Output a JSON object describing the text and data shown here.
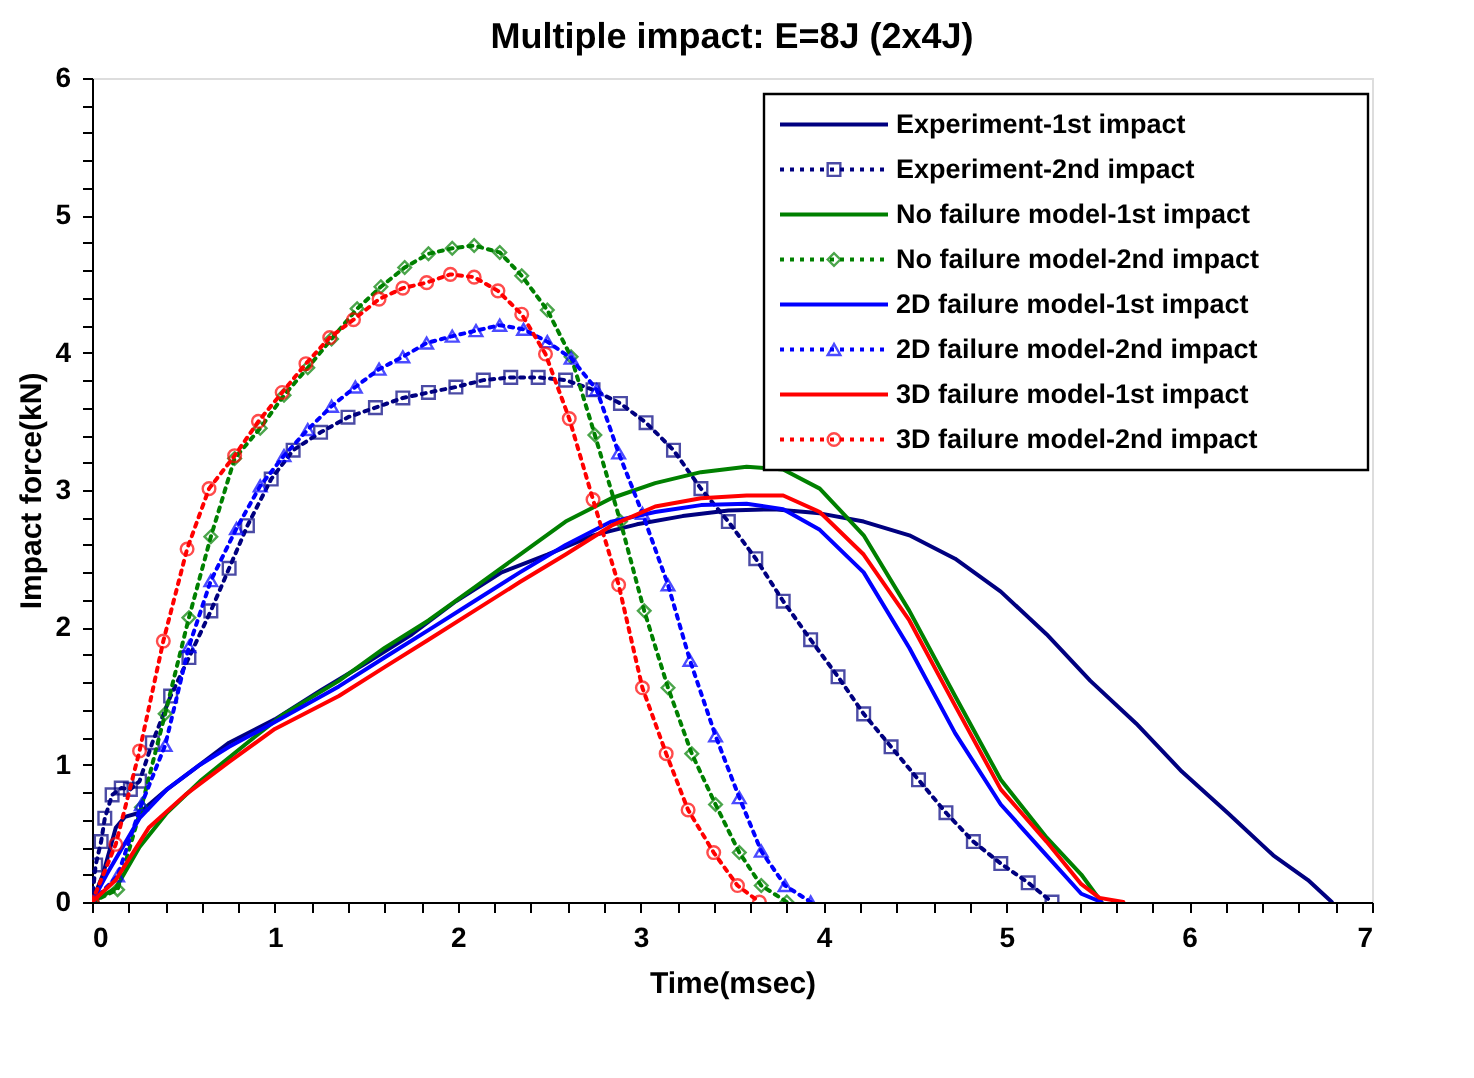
{
  "chart_data": {
    "type": "line",
    "title": "Multiple impact: E=8J (2x4J)",
    "xlabel": "Time(msec)",
    "ylabel": "Impact force(kN)",
    "xlim": [
      0,
      7
    ],
    "ylim": [
      0,
      6
    ],
    "xticks": [
      0,
      {
        "value": 0.2,
        "label": null
      },
      {
        "value": 0.4,
        "label": null
      },
      {
        "value": 0.6,
        "label": null
      },
      {
        "value": 0.8,
        "label": null
      },
      1,
      {
        "value": 1.2,
        "label": null
      },
      {
        "value": 1.4,
        "label": null
      },
      {
        "value": 1.6,
        "label": null
      },
      {
        "value": 1.8,
        "label": null
      },
      2,
      {
        "value": 2.2,
        "label": null
      },
      {
        "value": 2.4,
        "label": null
      },
      {
        "value": 2.6,
        "label": null
      },
      {
        "value": 2.8,
        "label": null
      },
      3,
      {
        "value": 3.2,
        "label": null
      },
      {
        "value": 3.4,
        "label": null
      },
      {
        "value": 3.6,
        "label": null
      },
      {
        "value": 3.8,
        "label": null
      },
      4,
      {
        "value": 4.2,
        "label": null
      },
      {
        "value": 4.4,
        "label": null
      },
      {
        "value": 4.6,
        "label": null
      },
      {
        "value": 4.8,
        "label": null
      },
      5,
      {
        "value": 5.2,
        "label": null
      },
      {
        "value": 5.4,
        "label": null
      },
      {
        "value": 5.6,
        "label": null
      },
      {
        "value": 5.8,
        "label": null
      },
      6,
      {
        "value": 6.2,
        "label": null
      },
      {
        "value": 6.4,
        "label": null
      },
      {
        "value": 6.6,
        "label": null
      },
      {
        "value": 6.8,
        "label": null
      },
      7
    ],
    "yticks": [
      0,
      {
        "value": 0.2,
        "label": null
      },
      {
        "value": 0.4,
        "label": null
      },
      {
        "value": 0.6,
        "label": null
      },
      {
        "value": 0.8,
        "label": null
      },
      1,
      {
        "value": 1.2,
        "label": null
      },
      {
        "value": 1.4,
        "label": null
      },
      {
        "value": 1.6,
        "label": null
      },
      {
        "value": 1.8,
        "label": null
      },
      2,
      {
        "value": 2.2,
        "label": null
      },
      {
        "value": 2.4,
        "label": null
      },
      {
        "value": 2.6,
        "label": null
      },
      {
        "value": 2.8,
        "label": null
      },
      3,
      {
        "value": 3.2,
        "label": null
      },
      {
        "value": 3.4,
        "label": null
      },
      {
        "value": 3.6,
        "label": null
      },
      {
        "value": 3.8,
        "label": null
      },
      4,
      {
        "value": 4.2,
        "label": null
      },
      {
        "value": 4.4,
        "label": null
      },
      {
        "value": 4.6,
        "label": null
      },
      {
        "value": 4.8,
        "label": null
      },
      5,
      {
        "value": 5.2,
        "label": null
      },
      {
        "value": 5.4,
        "label": null
      },
      {
        "value": 5.6,
        "label": null
      },
      {
        "value": 5.8,
        "label": null
      },
      6
    ],
    "grid": false,
    "legend": "top right",
    "series": [
      {
        "name": "Experiment-1st impact",
        "color": "#000080",
        "line_style": "solid",
        "marker": "none",
        "x": [
          0,
          0.06,
          0.13,
          0.18,
          0.26,
          0.41,
          0.58,
          0.75,
          1.0,
          1.25,
          1.5,
          1.75,
          1.99,
          2.24,
          2.49,
          2.74,
          2.98,
          3.23,
          3.48,
          3.73,
          3.98,
          4.22,
          4.47,
          4.72,
          4.97,
          5.22,
          5.46,
          5.71,
          5.96,
          6.21,
          6.46,
          6.65,
          6.78
        ],
        "values": [
          0,
          0.2,
          0.54,
          0.62,
          0.65,
          0.82,
          0.99,
          1.16,
          1.33,
          1.54,
          1.74,
          1.95,
          2.19,
          2.4,
          2.53,
          2.67,
          2.75,
          2.81,
          2.85,
          2.86,
          2.83,
          2.77,
          2.67,
          2.5,
          2.26,
          1.95,
          1.61,
          1.3,
          0.95,
          0.65,
          0.34,
          0.16,
          0
        ]
      },
      {
        "name": "Experiment-2nd impact",
        "color": "#000080",
        "line_style": "dotted",
        "marker": "square",
        "x": [
          0,
          0.02,
          0.05,
          0.07,
          0.11,
          0.16,
          0.21,
          0.26,
          0.33,
          0.43,
          0.53,
          0.65,
          0.75,
          0.85,
          0.98,
          1.1,
          1.25,
          1.4,
          1.55,
          1.7,
          1.84,
          1.99,
          2.14,
          2.29,
          2.44,
          2.59,
          2.74,
          2.89,
          3.03,
          3.18,
          3.33,
          3.48,
          3.63,
          3.78,
          3.93,
          4.08,
          4.22,
          4.37,
          4.52,
          4.67,
          4.82,
          4.97,
          5.12,
          5.25
        ],
        "values": [
          0,
          0.27,
          0.44,
          0.61,
          0.78,
          0.83,
          0.82,
          0.88,
          1.16,
          1.5,
          1.78,
          2.12,
          2.43,
          2.74,
          3.08,
          3.29,
          3.42,
          3.53,
          3.6,
          3.67,
          3.71,
          3.75,
          3.8,
          3.82,
          3.82,
          3.8,
          3.73,
          3.63,
          3.49,
          3.29,
          3.01,
          2.77,
          2.5,
          2.19,
          1.91,
          1.64,
          1.37,
          1.13,
          0.89,
          0.65,
          0.44,
          0.28,
          0.14,
          0
        ]
      },
      {
        "name": "No failure model-1st impact",
        "color": "#008000",
        "line_style": "solid",
        "marker": "none",
        "x": [
          0,
          0.13,
          0.26,
          0.41,
          0.6,
          0.85,
          1.05,
          1.35,
          1.6,
          1.84,
          2.09,
          2.34,
          2.59,
          2.84,
          3.08,
          3.33,
          3.58,
          3.78,
          3.98,
          4.22,
          4.47,
          4.72,
          4.97,
          5.22,
          5.41,
          5.52
        ],
        "values": [
          0,
          0.1,
          0.4,
          0.65,
          0.89,
          1.16,
          1.37,
          1.61,
          1.85,
          2.05,
          2.29,
          2.53,
          2.77,
          2.94,
          3.05,
          3.13,
          3.17,
          3.15,
          3.01,
          2.67,
          2.12,
          1.5,
          0.89,
          0.47,
          0.2,
          0
        ]
      },
      {
        "name": "No failure model-2nd impact",
        "color": "#008000",
        "line_style": "dotted",
        "marker": "diamond",
        "x": [
          0,
          0.14,
          0.27,
          0.4,
          0.53,
          0.65,
          0.78,
          0.92,
          1.05,
          1.18,
          1.31,
          1.45,
          1.58,
          1.71,
          1.84,
          1.97,
          2.09,
          2.23,
          2.35,
          2.49,
          2.62,
          2.75,
          2.89,
          3.02,
          3.15,
          3.28,
          3.41,
          3.54,
          3.66,
          3.8
        ],
        "values": [
          0,
          0.09,
          0.69,
          1.37,
          2.07,
          2.66,
          3.23,
          3.45,
          3.69,
          3.89,
          4.1,
          4.32,
          4.48,
          4.62,
          4.72,
          4.76,
          4.78,
          4.73,
          4.56,
          4.31,
          3.97,
          3.4,
          2.77,
          2.12,
          1.56,
          1.08,
          0.71,
          0.36,
          0.12,
          0
        ]
      },
      {
        "name": "2D failure model-1st impact",
        "color": "#0000ff",
        "line_style": "solid",
        "marker": "none",
        "x": [
          0,
          0.08,
          0.26,
          0.41,
          0.58,
          0.75,
          1.0,
          1.35,
          1.6,
          1.84,
          2.09,
          2.34,
          2.59,
          2.84,
          3.08,
          3.33,
          3.58,
          3.78,
          3.98,
          4.22,
          4.47,
          4.72,
          4.97,
          5.22,
          5.41,
          5.52
        ],
        "values": [
          0,
          0.2,
          0.61,
          0.82,
          0.99,
          1.13,
          1.31,
          1.57,
          1.78,
          1.98,
          2.19,
          2.4,
          2.6,
          2.77,
          2.84,
          2.89,
          2.9,
          2.86,
          2.71,
          2.4,
          1.85,
          1.23,
          0.71,
          0.34,
          0.06,
          0
        ]
      },
      {
        "name": "2D failure model-2nd impact",
        "color": "#0000ff",
        "line_style": "dotted",
        "marker": "triangle",
        "x": [
          0,
          0.14,
          0.27,
          0.4,
          0.53,
          0.65,
          0.79,
          0.92,
          1.05,
          1.18,
          1.31,
          1.44,
          1.57,
          1.7,
          1.83,
          1.97,
          2.1,
          2.23,
          2.36,
          2.49,
          2.62,
          2.76,
          2.88,
          3.01,
          3.15,
          3.27,
          3.41,
          3.54,
          3.66,
          3.79,
          3.93
        ],
        "values": [
          0,
          0.19,
          0.71,
          1.14,
          1.86,
          2.34,
          2.72,
          3.03,
          3.25,
          3.44,
          3.61,
          3.75,
          3.88,
          3.97,
          4.07,
          4.12,
          4.16,
          4.2,
          4.17,
          4.08,
          3.96,
          3.73,
          3.27,
          2.83,
          2.31,
          1.76,
          1.21,
          0.76,
          0.37,
          0.12,
          0
        ]
      },
      {
        "name": "3D failure model-1st impact",
        "color": "#ff0000",
        "line_style": "solid",
        "marker": "none",
        "x": [
          0,
          0.13,
          0.31,
          0.51,
          0.75,
          1.0,
          1.35,
          1.6,
          1.84,
          2.09,
          2.34,
          2.59,
          2.84,
          3.08,
          3.33,
          3.58,
          3.78,
          3.98,
          4.22,
          4.47,
          4.72,
          4.97,
          5.22,
          5.41,
          5.51,
          5.64
        ],
        "values": [
          0,
          0.16,
          0.54,
          0.78,
          1.02,
          1.26,
          1.5,
          1.71,
          1.91,
          2.12,
          2.33,
          2.53,
          2.74,
          2.88,
          2.94,
          2.96,
          2.96,
          2.84,
          2.53,
          2.05,
          1.43,
          0.82,
          0.44,
          0.13,
          0.03,
          0
        ]
      },
      {
        "name": "3D failure model-2nd impact",
        "color": "#ff0000",
        "line_style": "dotted",
        "marker": "circle",
        "x": [
          0,
          0.13,
          0.26,
          0.39,
          0.52,
          0.64,
          0.78,
          0.91,
          1.04,
          1.17,
          1.3,
          1.43,
          1.57,
          1.7,
          1.83,
          1.96,
          2.09,
          2.22,
          2.35,
          2.48,
          2.61,
          2.74,
          2.88,
          3.01,
          3.14,
          3.26,
          3.4,
          3.53,
          3.65
        ],
        "values": [
          0,
          0.42,
          1.1,
          1.9,
          2.57,
          3.01,
          3.25,
          3.5,
          3.71,
          3.92,
          4.11,
          4.24,
          4.39,
          4.47,
          4.51,
          4.57,
          4.55,
          4.45,
          4.28,
          3.99,
          3.52,
          2.93,
          2.31,
          1.56,
          1.08,
          0.67,
          0.36,
          0.12,
          0
        ]
      }
    ]
  }
}
